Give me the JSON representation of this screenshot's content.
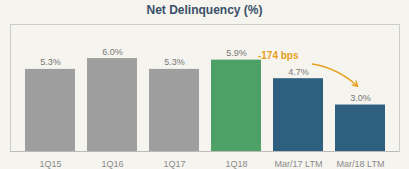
{
  "chart_data": {
    "type": "bar",
    "title": "Net Delinquency (%)",
    "categories": [
      "1Q15",
      "1Q16",
      "1Q17",
      "1Q18",
      "Mar/17 LTM",
      "Mar/18 LTM"
    ],
    "values": [
      5.3,
      6.0,
      5.3,
      5.9,
      4.7,
      3.0
    ],
    "value_labels": [
      "5.3%",
      "6.0%",
      "5.3%",
      "5.9%",
      "4.7%",
      "3.0%"
    ],
    "data_labels": true,
    "colors": [
      "#9e9e9e",
      "#9e9e9e",
      "#9e9e9e",
      "#4da167",
      "#2e5f7e",
      "#2e5f7e"
    ],
    "ylim": [
      0,
      8.2
    ],
    "tick_labels": "x",
    "annotation": "-174 bps"
  }
}
